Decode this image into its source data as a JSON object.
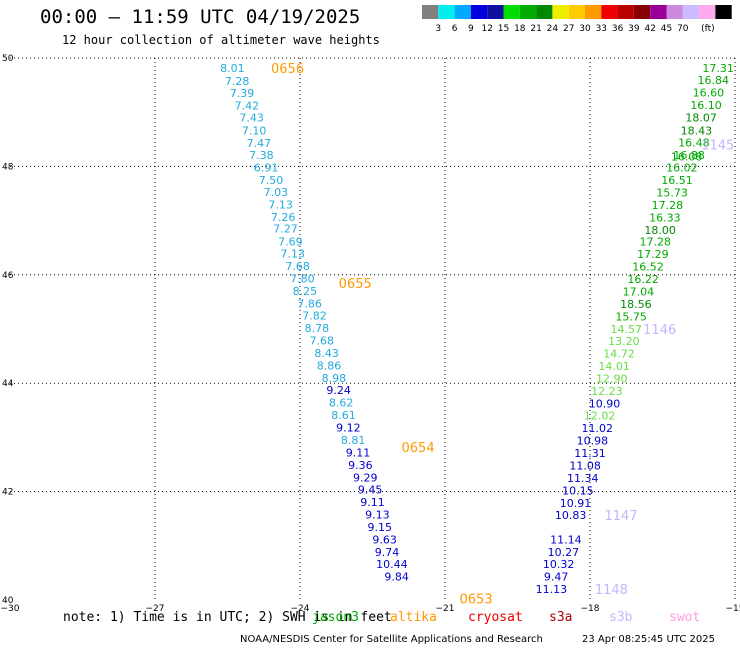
{
  "title": "00:00 – 11:59 UTC 04/19/2025",
  "subtitle": "12 hour collection of altimeter wave heights",
  "note": "note: 1) Time is in UTC; 2) SWH is in feet",
  "credit": "NOAA/NESDIS Center for Satellite Applications and Research",
  "credit_time": "23 Apr 08:25:45 UTC 2025",
  "satellites": [
    {
      "name": "jason3",
      "color": "#00aa00"
    },
    {
      "name": "altika",
      "color": "#ff9900"
    },
    {
      "name": "cryosat",
      "color": "#ee0000"
    },
    {
      "name": "s3a",
      "color": "#aa0000"
    },
    {
      "name": "s3b",
      "color": "#c8b4ff"
    },
    {
      "name": "swot",
      "color": "#ff99dd"
    }
  ],
  "color_scale": {
    "unit": "(ft)",
    "colors": [
      "#808080",
      "#00eeee",
      "#00aaff",
      "#0000dd",
      "#1010a0",
      "#00dd00",
      "#00aa00",
      "#008800",
      "#eeee00",
      "#ffcc00",
      "#ff9900",
      "#ee0000",
      "#bb0000",
      "#880000",
      "#990099",
      "#cc88dd",
      "#ccbbff",
      "#ffaaee",
      "#000000"
    ],
    "labels": [
      "3",
      "6",
      "9",
      "12",
      "15",
      "18",
      "21",
      "24",
      "27",
      "30",
      "33",
      "36",
      "39",
      "42",
      "45",
      "70"
    ]
  },
  "chart_data": {
    "type": "scatter",
    "title": "00:00 – 11:59 UTC 04/19/2025",
    "subtitle": "12 hour collection of altimeter wave heights",
    "xlabel": "",
    "ylabel": "",
    "xlim": [
      -30,
      -15
    ],
    "ylim": [
      40,
      50
    ],
    "x_ticks": [
      -30,
      -27,
      -24,
      -21,
      -18,
      -15
    ],
    "y_ticks": [
      40,
      42,
      44,
      46,
      48,
      50
    ],
    "grid": true,
    "pass_labels": [
      {
        "text": "0656",
        "lon": -24.6,
        "lat": 49.82,
        "color": "#ff9900"
      },
      {
        "text": "0655",
        "lon": -23.2,
        "lat": 45.85,
        "color": "#ff9900"
      },
      {
        "text": "0654",
        "lon": -21.9,
        "lat": 42.82,
        "color": "#ff9900"
      },
      {
        "text": "0653",
        "lon": -20.7,
        "lat": 40.03,
        "color": "#ff9900"
      },
      {
        "text": "1145",
        "lon": -15.7,
        "lat": 48.4,
        "color": "#c8b4ff"
      },
      {
        "text": "1146",
        "lon": -16.9,
        "lat": 45.0,
        "color": "#c8b4ff"
      },
      {
        "text": "1147",
        "lon": -17.7,
        "lat": 41.57,
        "color": "#c8b4ff"
      },
      {
        "text": "1148",
        "lon": -17.9,
        "lat": 40.2,
        "color": "#c8b4ff"
      }
    ],
    "series": [
      {
        "name": "0656-0653",
        "color": "#ff9900",
        "points": [
          {
            "lon": -25.4,
            "lat": 49.82,
            "swh": "8.01"
          },
          {
            "lon": -25.3,
            "lat": 49.58,
            "swh": "7.28"
          },
          {
            "lon": -25.2,
            "lat": 49.35,
            "swh": "7.39"
          },
          {
            "lon": -25.1,
            "lat": 49.12,
            "swh": "7.42"
          },
          {
            "lon": -25.0,
            "lat": 48.9,
            "swh": "7.43"
          },
          {
            "lon": -24.95,
            "lat": 48.66,
            "swh": "7.10"
          },
          {
            "lon": -24.85,
            "lat": 48.43,
            "swh": "7.47"
          },
          {
            "lon": -24.8,
            "lat": 48.21,
            "swh": "7.38"
          },
          {
            "lon": -24.7,
            "lat": 47.98,
            "swh": "6.91"
          },
          {
            "lon": -24.6,
            "lat": 47.75,
            "swh": "7.50"
          },
          {
            "lon": -24.5,
            "lat": 47.53,
            "swh": "7.03"
          },
          {
            "lon": -24.4,
            "lat": 47.3,
            "swh": "7.13"
          },
          {
            "lon": -24.35,
            "lat": 47.07,
            "swh": "7.26"
          },
          {
            "lon": -24.3,
            "lat": 46.85,
            "swh": "7.27"
          },
          {
            "lon": -24.2,
            "lat": 46.61,
            "swh": "7.69"
          },
          {
            "lon": -24.15,
            "lat": 46.39,
            "swh": "7.13"
          },
          {
            "lon": -24.05,
            "lat": 46.16,
            "swh": "7.68"
          },
          {
            "lon": -23.95,
            "lat": 45.93,
            "swh": "7.80"
          },
          {
            "lon": -23.9,
            "lat": 45.7,
            "swh": "8.25"
          },
          {
            "lon": -23.8,
            "lat": 45.47,
            "swh": "7.86"
          },
          {
            "lon": -23.7,
            "lat": 45.25,
            "swh": "7.82"
          },
          {
            "lon": -23.65,
            "lat": 45.02,
            "swh": "8.78"
          },
          {
            "lon": -23.55,
            "lat": 44.79,
            "swh": "7.68"
          },
          {
            "lon": -23.45,
            "lat": 44.56,
            "swh": "8.43"
          },
          {
            "lon": -23.4,
            "lat": 44.33,
            "swh": "8.86"
          },
          {
            "lon": -23.3,
            "lat": 44.1,
            "swh": "8.98"
          },
          {
            "lon": -23.2,
            "lat": 43.87,
            "swh": "9.24"
          },
          {
            "lon": -23.15,
            "lat": 43.64,
            "swh": "8.62"
          },
          {
            "lon": -23.1,
            "lat": 43.41,
            "swh": "8.61"
          },
          {
            "lon": -23.0,
            "lat": 43.18,
            "swh": "9.12"
          },
          {
            "lon": -22.9,
            "lat": 42.95,
            "swh": "8.81"
          },
          {
            "lon": -22.8,
            "lat": 42.72,
            "swh": "9.11"
          },
          {
            "lon": -22.75,
            "lat": 42.49,
            "swh": "9.36"
          },
          {
            "lon": -22.65,
            "lat": 42.26,
            "swh": "9.29"
          },
          {
            "lon": -22.55,
            "lat": 42.04,
            "swh": "9.45"
          },
          {
            "lon": -22.5,
            "lat": 41.81,
            "swh": "9.11"
          },
          {
            "lon": -22.4,
            "lat": 41.58,
            "swh": "9.13"
          },
          {
            "lon": -22.35,
            "lat": 41.35,
            "swh": "9.15"
          },
          {
            "lon": -22.25,
            "lat": 41.12,
            "swh": "9.63"
          },
          {
            "lon": -22.2,
            "lat": 40.89,
            "swh": "9.74"
          },
          {
            "lon": -22.1,
            "lat": 40.66,
            "swh": "10.44"
          },
          {
            "lon": -22.0,
            "lat": 40.43,
            "swh": "9.84"
          }
        ]
      },
      {
        "name": "1145-1148",
        "color": "#c8b4ff",
        "points": [
          {
            "lon": -15.35,
            "lat": 49.82,
            "swh": "17.31"
          },
          {
            "lon": -15.45,
            "lat": 49.59,
            "swh": "16.84"
          },
          {
            "lon": -15.55,
            "lat": 49.36,
            "swh": "16.60"
          },
          {
            "lon": -15.6,
            "lat": 49.13,
            "swh": "16.10"
          },
          {
            "lon": -15.7,
            "lat": 48.9,
            "swh": "18.07"
          },
          {
            "lon": -15.8,
            "lat": 48.66,
            "swh": "18.43"
          },
          {
            "lon": -15.85,
            "lat": 48.44,
            "swh": "16.48"
          },
          {
            "lon": -15.95,
            "lat": 48.21,
            "swh": "16.88"
          },
          {
            "lon": -16.0,
            "lat": 48.18,
            "swh": "16.08"
          },
          {
            "lon": -16.1,
            "lat": 47.98,
            "swh": "16.02"
          },
          {
            "lon": -16.2,
            "lat": 47.75,
            "swh": "16.51"
          },
          {
            "lon": -16.3,
            "lat": 47.52,
            "swh": "15.73"
          },
          {
            "lon": -16.4,
            "lat": 47.29,
            "swh": "17.28"
          },
          {
            "lon": -16.45,
            "lat": 47.06,
            "swh": "16.33"
          },
          {
            "lon": -16.55,
            "lat": 46.83,
            "swh": "18.00"
          },
          {
            "lon": -16.65,
            "lat": 46.61,
            "swh": "17.28"
          },
          {
            "lon": -16.7,
            "lat": 46.38,
            "swh": "17.29"
          },
          {
            "lon": -16.8,
            "lat": 46.15,
            "swh": "16.52"
          },
          {
            "lon": -16.9,
            "lat": 45.92,
            "swh": "16.22"
          },
          {
            "lon": -17.0,
            "lat": 45.69,
            "swh": "17.04"
          },
          {
            "lon": -17.05,
            "lat": 45.46,
            "swh": "18.56"
          },
          {
            "lon": -17.15,
            "lat": 45.23,
            "swh": "15.75"
          },
          {
            "lon": -17.25,
            "lat": 45.0,
            "swh": "14.57"
          },
          {
            "lon": -17.3,
            "lat": 44.78,
            "swh": "13.20"
          },
          {
            "lon": -17.4,
            "lat": 44.55,
            "swh": "14.72"
          },
          {
            "lon": -17.5,
            "lat": 44.32,
            "swh": "14.01"
          },
          {
            "lon": -17.55,
            "lat": 44.09,
            "swh": "12.90"
          },
          {
            "lon": -17.65,
            "lat": 43.86,
            "swh": "12.23"
          },
          {
            "lon": -17.7,
            "lat": 43.63,
            "swh": "10.90"
          },
          {
            "lon": -17.8,
            "lat": 43.4,
            "swh": "12.02"
          },
          {
            "lon": -17.85,
            "lat": 43.17,
            "swh": "11.02"
          },
          {
            "lon": -17.95,
            "lat": 42.94,
            "swh": "10.98"
          },
          {
            "lon": -18.0,
            "lat": 42.71,
            "swh": "11.31"
          },
          {
            "lon": -18.1,
            "lat": 42.48,
            "swh": "11.08"
          },
          {
            "lon": -18.15,
            "lat": 42.25,
            "swh": "11.34"
          },
          {
            "lon": -18.25,
            "lat": 42.02,
            "swh": "10.15"
          },
          {
            "lon": -18.3,
            "lat": 41.79,
            "swh": "10.91"
          },
          {
            "lon": -18.4,
            "lat": 41.57,
            "swh": "10.83"
          },
          {
            "lon": -18.5,
            "lat": 41.12,
            "swh": "11.14"
          },
          {
            "lon": -18.55,
            "lat": 40.89,
            "swh": "10.27"
          },
          {
            "lon": -18.65,
            "lat": 40.66,
            "swh": "10.32"
          },
          {
            "lon": -18.7,
            "lat": 40.43,
            "swh": "9.47"
          },
          {
            "lon": -18.8,
            "lat": 40.2,
            "swh": "11.13"
          }
        ]
      }
    ]
  }
}
